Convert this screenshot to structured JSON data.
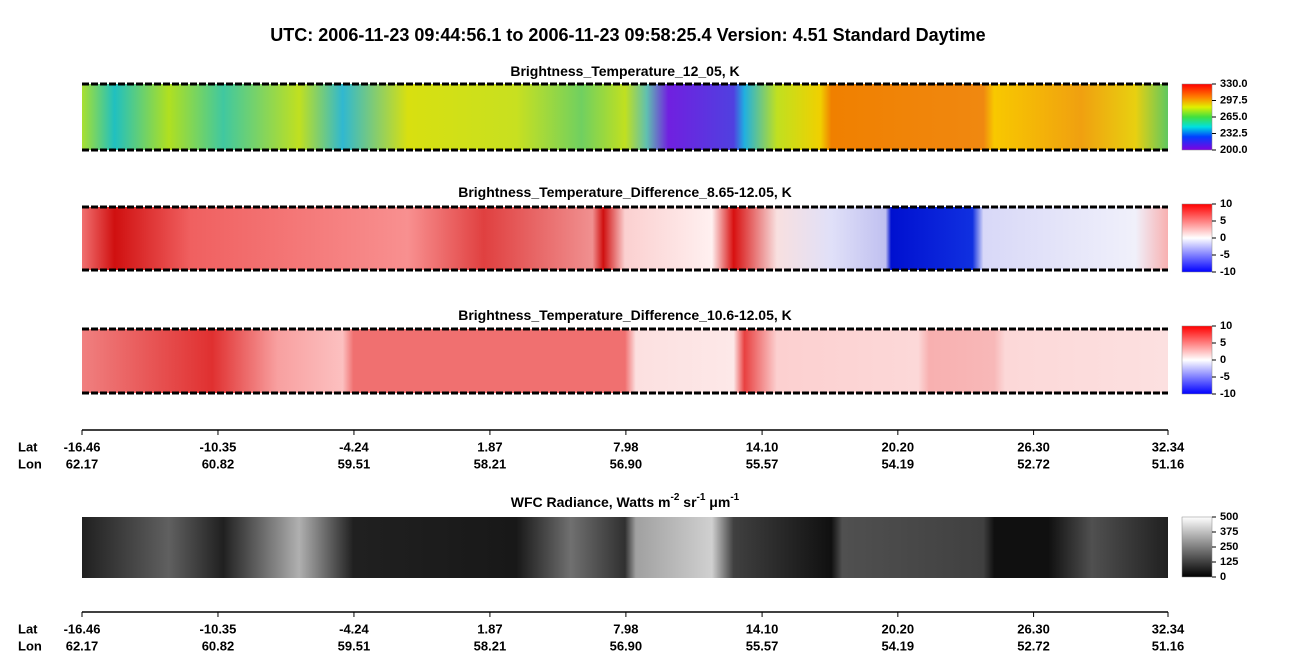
{
  "title": "UTC:  2006-11-23   09:44:56.1  to  2006-11-23   09:58:25.4    Version: 4.51  Standard Daytime",
  "panels": [
    {
      "title": [
        "Brightness_Temperature_12_05, K"
      ],
      "colorbar": {
        "lim": [
          200,
          330
        ],
        "ticks": [
          {
            "value": 330,
            "label": "330.0"
          },
          {
            "value": 297.5,
            "label": "297.5"
          },
          {
            "value": 265,
            "label": "265.0"
          },
          {
            "value": 232.5,
            "label": "232.5"
          },
          {
            "value": 200,
            "label": "200.0"
          }
        ]
      }
    },
    {
      "title": [
        "Brightness_Temperature_Difference_8.65-12.05, K"
      ],
      "colorbar": {
        "lim": [
          -10,
          10
        ],
        "ticks": [
          10,
          5,
          0,
          -5,
          -10
        ]
      }
    },
    {
      "title": [
        "Brightness_Temperature_Difference_10.6-12.05, K"
      ],
      "colorbar": {
        "lim": [
          -10,
          10
        ],
        "ticks": [
          10,
          5,
          0,
          -5,
          -10
        ]
      }
    },
    {
      "title": [
        "WFC Radiance, Watts m",
        "-2",
        " sr",
        "-1",
        " μm",
        "-1"
      ],
      "colorbar": {
        "lim": [
          0,
          500
        ],
        "ticks": [
          500,
          375,
          250,
          125,
          0
        ]
      }
    }
  ],
  "axes": [
    {
      "lat_label": "Lat",
      "lon_label": "Lon",
      "lat_ticks": [
        -16.46,
        -10.35,
        -4.24,
        1.87,
        7.98,
        {
          "value": 14.1,
          "label": "14.10"
        },
        {
          "value": 20.2,
          "label": "20.20"
        },
        {
          "value": 26.3,
          "label": "26.30"
        },
        32.34
      ],
      "lon_ticks": [
        62.17,
        60.82,
        59.51,
        58.21,
        {
          "value": 56.9,
          "label": "56.90"
        },
        55.57,
        54.19,
        52.72,
        51.16
      ]
    },
    {
      "lat_label": "Lat",
      "lon_label": "Lon",
      "lat_ticks": [
        -16.46,
        -10.35,
        -4.24,
        1.87,
        7.98,
        {
          "value": 14.1,
          "label": "14.10"
        },
        {
          "value": 20.2,
          "label": "20.20"
        },
        {
          "value": 26.3,
          "label": "26.30"
        },
        32.34
      ],
      "lon_ticks": [
        62.17,
        60.82,
        59.51,
        58.21,
        {
          "value": 56.9,
          "label": "56.90"
        },
        55.57,
        54.19,
        52.72,
        51.16
      ]
    }
  ]
}
